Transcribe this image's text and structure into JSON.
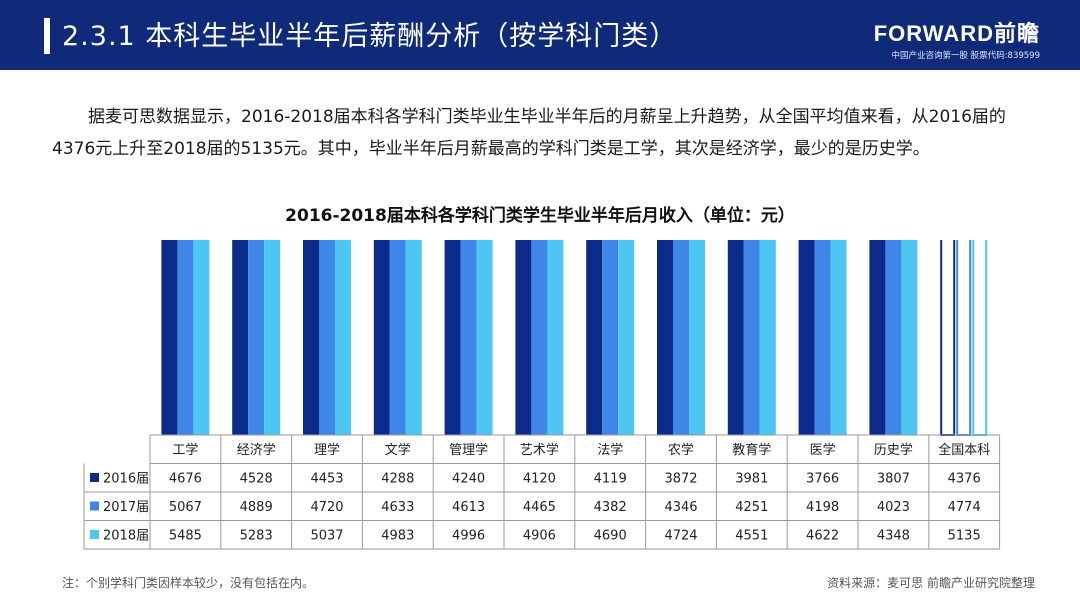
{
  "header": {
    "title": "2.3.1 本科生毕业半年后薪酬分析（按学科门类）",
    "brand_name": "FORWARD前瞻",
    "brand_sub": "中国产业咨询第一股 股票代码:839599"
  },
  "intro": "据麦可思数据显示，2016-2018届本科各学科门类毕业生毕业半年后的月薪呈上升趋势，从全国平均值来看，从2016届的4376元上升至2018届的5135元。其中，毕业半年后月薪最高的学科门类是工学，其次是经济学，最少的是历史学。",
  "footnote": "注：个别学科门类因样本较少，没有包括在内。",
  "source": "资料来源：麦可思 前瞻产业研究院整理",
  "colors": {
    "s2016": "#0b2a8a",
    "s2017": "#3f86e8",
    "s2018": "#4cc7f4",
    "header": "#0e2a78"
  },
  "chart_data": {
    "type": "bar",
    "title": "2016-2018届本科各学科门类学生毕业半年后月收入（单位：元）",
    "categories": [
      "工学",
      "经济学",
      "理学",
      "文学",
      "管理学",
      "艺术学",
      "法学",
      "农学",
      "教育学",
      "医学",
      "历史学",
      "全国本科"
    ],
    "series": [
      {
        "name": "2016届",
        "values": [
          4676,
          4528,
          4453,
          4288,
          4240,
          4120,
          4119,
          3872,
          3981,
          3766,
          3807,
          4376
        ]
      },
      {
        "name": "2017届",
        "values": [
          5067,
          4889,
          4720,
          4633,
          4613,
          4465,
          4382,
          4346,
          4251,
          4198,
          4023,
          4774
        ]
      },
      {
        "name": "2018届",
        "values": [
          5485,
          5283,
          5037,
          4983,
          4996,
          4906,
          4690,
          4724,
          4551,
          4622,
          4348,
          5135
        ]
      }
    ],
    "outlined_category": "全国本科",
    "legend": "table-below",
    "grid": false
  }
}
